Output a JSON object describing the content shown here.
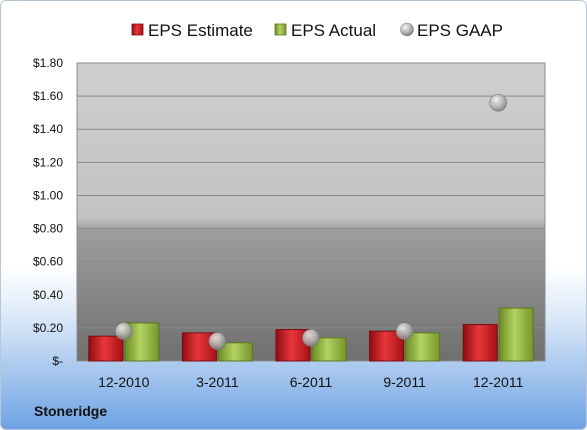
{
  "company": "Stoneridge",
  "chart_data": {
    "type": "bar",
    "categories": [
      "12-2010",
      "3-2011",
      "6-2011",
      "9-2011",
      "12-2011"
    ],
    "series": [
      {
        "name": "EPS Estimate",
        "kind": "bar",
        "color": "#c8151b",
        "values": [
          0.15,
          0.17,
          0.19,
          0.18,
          0.22
        ]
      },
      {
        "name": "EPS Actual",
        "kind": "bar",
        "color": "#8fb23a",
        "values": [
          0.23,
          0.11,
          0.14,
          0.17,
          0.32
        ]
      },
      {
        "name": "EPS GAAP",
        "kind": "scatter",
        "color": "#a7a7a7",
        "values": [
          0.18,
          0.12,
          0.14,
          0.18,
          1.56
        ]
      }
    ],
    "yticks": [
      "$-",
      "$0.20",
      "$0.40",
      "$0.60",
      "$0.80",
      "$1.00",
      "$1.20",
      "$1.40",
      "$1.60",
      "$1.80"
    ],
    "ylim": [
      0,
      1.8
    ],
    "grid": true,
    "legend_position": "top"
  }
}
